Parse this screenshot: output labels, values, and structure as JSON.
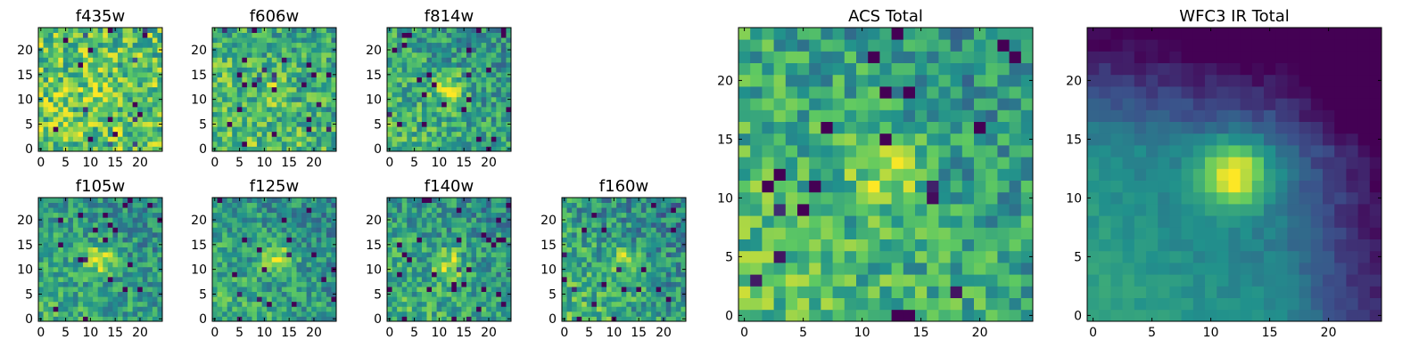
{
  "figure_title": "",
  "colormap": "viridis",
  "colormap_stops": [
    "#440154",
    "#3b528b",
    "#21918c",
    "#5ec962",
    "#fde725"
  ],
  "chart_data": [
    {
      "type": "heatmap",
      "title": "f435w",
      "grid_size": 25,
      "xlim": [
        0,
        24
      ],
      "ylim": [
        0,
        24
      ],
      "xticks": [
        "0",
        "5",
        "10",
        "15",
        "20"
      ],
      "yticks": [
        "0",
        "5",
        "10",
        "15",
        "20"
      ],
      "source_peak": [
        12,
        12
      ],
      "source_strength": 0.1,
      "noise": 0.55,
      "floor": 0.72,
      "gradient": 0.05,
      "edge_dark": 0.0,
      "seed": 11
    },
    {
      "type": "heatmap",
      "title": "f606w",
      "grid_size": 25,
      "xlim": [
        0,
        24
      ],
      "ylim": [
        0,
        24
      ],
      "xticks": [
        "0",
        "5",
        "10",
        "15",
        "20"
      ],
      "yticks": [
        "0",
        "5",
        "10",
        "15",
        "20"
      ],
      "source_peak": [
        12,
        12
      ],
      "source_strength": 0.12,
      "noise": 0.48,
      "floor": 0.65,
      "gradient": 0.18,
      "edge_dark": 0.0,
      "seed": 23
    },
    {
      "type": "heatmap",
      "title": "f814w",
      "grid_size": 25,
      "xlim": [
        0,
        24
      ],
      "ylim": [
        0,
        24
      ],
      "xticks": [
        "0",
        "5",
        "10",
        "15",
        "20"
      ],
      "yticks": [
        "0",
        "5",
        "10",
        "15",
        "20"
      ],
      "source_peak": [
        12,
        12
      ],
      "source_strength": 0.4,
      "noise": 0.45,
      "floor": 0.58,
      "gradient": 0.22,
      "edge_dark": 0.0,
      "seed": 37
    },
    {
      "type": "heatmap",
      "title": "f105w",
      "grid_size": 25,
      "xlim": [
        0,
        24
      ],
      "ylim": [
        0,
        24
      ],
      "xticks": [
        "0",
        "5",
        "10",
        "15",
        "20"
      ],
      "yticks": [
        "0",
        "5",
        "10",
        "15",
        "20"
      ],
      "source_peak": [
        12,
        12
      ],
      "source_strength": 0.38,
      "noise": 0.4,
      "floor": 0.55,
      "gradient": 0.18,
      "edge_dark": 0.0,
      "seed": 41
    },
    {
      "type": "heatmap",
      "title": "f125w",
      "grid_size": 25,
      "xlim": [
        0,
        24
      ],
      "ylim": [
        0,
        24
      ],
      "xticks": [
        "0",
        "5",
        "10",
        "15",
        "20"
      ],
      "yticks": [
        "0",
        "5",
        "10",
        "15",
        "20"
      ],
      "source_peak": [
        13,
        12
      ],
      "source_strength": 0.4,
      "noise": 0.4,
      "floor": 0.55,
      "gradient": 0.2,
      "edge_dark": 0.0,
      "seed": 53
    },
    {
      "type": "heatmap",
      "title": "f140w",
      "grid_size": 25,
      "xlim": [
        0,
        24
      ],
      "ylim": [
        0,
        24
      ],
      "xticks": [
        "0",
        "5",
        "10",
        "15",
        "20"
      ],
      "yticks": [
        "0",
        "5",
        "10",
        "15",
        "20"
      ],
      "source_peak": [
        12,
        11
      ],
      "source_strength": 0.35,
      "noise": 0.42,
      "floor": 0.56,
      "gradient": 0.2,
      "edge_dark": 0.0,
      "seed": 67
    },
    {
      "type": "heatmap",
      "title": "f160w",
      "grid_size": 25,
      "xlim": [
        0,
        24
      ],
      "ylim": [
        0,
        24
      ],
      "xticks": [
        "0",
        "5",
        "10",
        "15",
        "20"
      ],
      "yticks": [
        "0",
        "5",
        "10",
        "15",
        "20"
      ],
      "source_peak": [
        12,
        12
      ],
      "source_strength": 0.3,
      "noise": 0.45,
      "floor": 0.55,
      "gradient": 0.3,
      "edge_dark": 0.0,
      "seed": 79
    },
    {
      "type": "heatmap",
      "title": "ACS Total",
      "grid_size": 25,
      "xlim": [
        0,
        24
      ],
      "ylim": [
        0,
        24
      ],
      "xticks": [
        "0",
        "5",
        "10",
        "15",
        "20"
      ],
      "yticks": [
        "0",
        "5",
        "10",
        "15",
        "20"
      ],
      "source_peak": [
        12,
        12
      ],
      "source_strength": 0.3,
      "noise": 0.42,
      "floor": 0.6,
      "gradient": 0.25,
      "edge_dark": 0.0,
      "seed": 97
    },
    {
      "type": "heatmap",
      "title": "WFC3 IR Total",
      "grid_size": 25,
      "xlim": [
        0,
        24
      ],
      "ylim": [
        0,
        24
      ],
      "xticks": [
        "0",
        "5",
        "10",
        "15",
        "20"
      ],
      "yticks": [
        "0",
        "5",
        "10",
        "15",
        "20"
      ],
      "source_peak": [
        12,
        12
      ],
      "source_strength": 0.62,
      "noise": 0.1,
      "floor": 0.4,
      "gradient": 0.4,
      "edge_dark": 0.45,
      "seed": 131
    }
  ]
}
